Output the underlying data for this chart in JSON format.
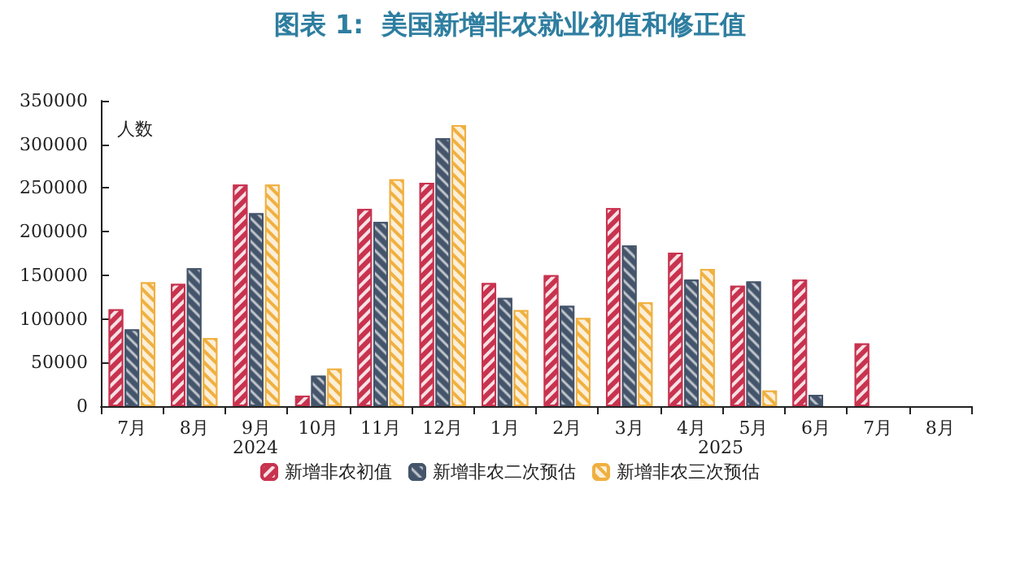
{
  "chart_data": {
    "type": "bar",
    "title": "图表 1:  美国新增非农就业初值和修正值",
    "ylabel": "人数",
    "categories": [
      "7月",
      "8月",
      "9月",
      "10月",
      "11月",
      "12月",
      "1月",
      "2月",
      "3月",
      "4月",
      "5月",
      "6月",
      "7月",
      "8月"
    ],
    "annotations": [
      "2024",
      "2025"
    ],
    "series": [
      {
        "name": "新增非农初值",
        "color": "#c8334f",
        "values": [
          111000,
          140000,
          254000,
          12000,
          226000,
          256000,
          141000,
          150000,
          227000,
          176000,
          138000,
          145000,
          72000,
          null
        ]
      },
      {
        "name": "新增非农二次预估",
        "color": "#44546a",
        "values": [
          88000,
          158000,
          221000,
          35000,
          211000,
          307000,
          124000,
          115000,
          184000,
          145000,
          143000,
          13000,
          null,
          null
        ]
      },
      {
        "name": "新增非农三次预估",
        "color": "#f0b040",
        "values": [
          142000,
          78000,
          254000,
          43000,
          260000,
          322000,
          110000,
          101000,
          119000,
          157000,
          18000,
          null,
          null,
          null
        ]
      }
    ],
    "ylim": [
      0,
      350000
    ],
    "yticks": [
      0,
      50000,
      100000,
      150000,
      200000,
      250000,
      300000,
      350000
    ],
    "grid": false,
    "legend": "bottom"
  }
}
